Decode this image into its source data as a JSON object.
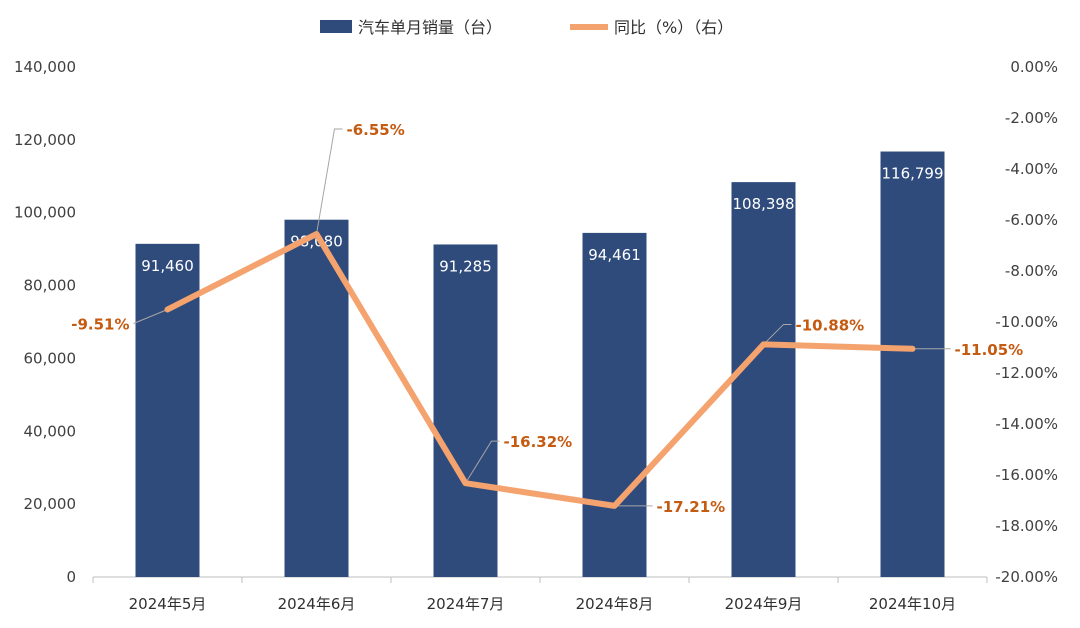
{
  "chart_data": {
    "type": "bar",
    "categories": [
      "2024年5月",
      "2024年6月",
      "2024年7月",
      "2024年8月",
      "2024年9月",
      "2024年10月"
    ],
    "series": [
      {
        "name": "汽车单月销量（台）",
        "type": "bar",
        "axis": "left",
        "values": [
          91460,
          98080,
          91285,
          94461,
          108398,
          116799
        ],
        "labels": [
          "91,460",
          "98,080",
          "91,285",
          "94,461",
          "108,398",
          "116,799"
        ]
      },
      {
        "name": "同比（%）（右）",
        "type": "line",
        "axis": "right",
        "values": [
          -9.51,
          -6.55,
          -16.32,
          -17.21,
          -10.88,
          -11.05
        ],
        "labels": [
          "-9.51%",
          "-6.55%",
          "-16.32%",
          "-17.21%",
          "-10.88%",
          "-11.05%"
        ]
      }
    ],
    "left_axis": {
      "ylim": [
        0,
        140000
      ],
      "ticks": [
        "0",
        "20,000",
        "40,000",
        "60,000",
        "80,000",
        "100,000",
        "120,000",
        "140,000"
      ]
    },
    "right_axis": {
      "ylim": [
        -20,
        0
      ],
      "ticks": [
        "-20.00%",
        "-18.00%",
        "-16.00%",
        "-14.00%",
        "-12.00%",
        "-10.00%",
        "-8.00%",
        "-6.00%",
        "-4.00%",
        "-2.00%",
        "0.00%"
      ]
    },
    "legend_position": "top-center",
    "grid": false,
    "colors": {
      "bar": "#2f4b7c",
      "line": "#f4a36f",
      "line_label": "#c55a11",
      "leader": "#a6a6a6"
    }
  }
}
